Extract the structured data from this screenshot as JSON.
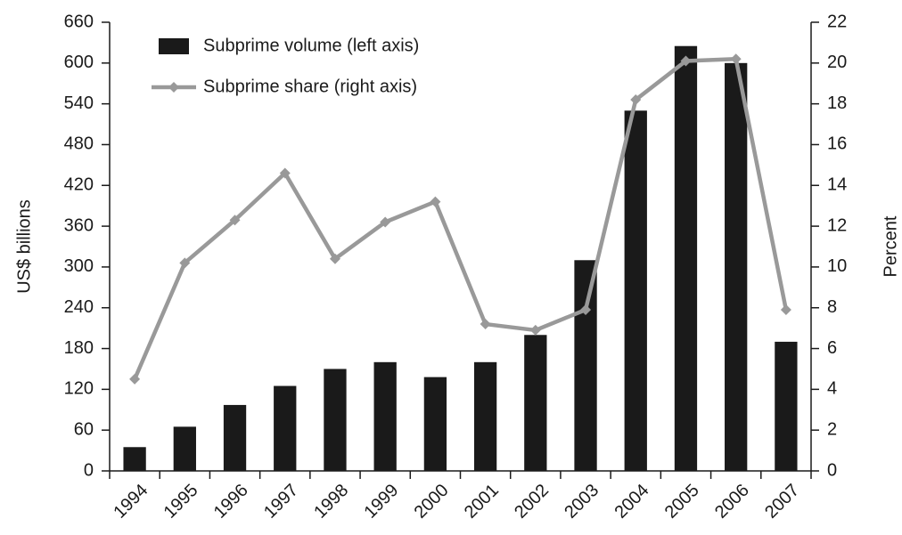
{
  "chart_data": {
    "type": "bar",
    "categories": [
      "1994",
      "1995",
      "1996",
      "1997",
      "1998",
      "1999",
      "2000",
      "2001",
      "2002",
      "2003",
      "2004",
      "2005",
      "2006",
      "2007"
    ],
    "series": [
      {
        "name": "Subprime volume (left axis)",
        "type": "bar",
        "color": "#1a1a1a",
        "values": [
          35,
          65,
          97,
          125,
          150,
          160,
          138,
          160,
          200,
          310,
          530,
          625,
          600,
          190
        ]
      },
      {
        "name": "Subprime share (right axis)",
        "type": "line",
        "axis": "y2",
        "color": "#999999",
        "values": [
          4.5,
          10.2,
          12.3,
          14.6,
          10.4,
          12.2,
          13.2,
          7.2,
          6.9,
          7.9,
          18.2,
          20.1,
          20.2,
          7.9
        ]
      }
    ],
    "ylabel": "US$ billions",
    "y2label": "Percent",
    "ylim": [
      0,
      660
    ],
    "yticks": [
      0,
      60,
      120,
      180,
      240,
      300,
      360,
      420,
      480,
      540,
      600,
      660
    ],
    "y2lim": [
      0,
      22
    ],
    "y2ticks": [
      0,
      2,
      4,
      6,
      8,
      10,
      12,
      14,
      16,
      18,
      20,
      22
    ],
    "legend": "upper left"
  }
}
